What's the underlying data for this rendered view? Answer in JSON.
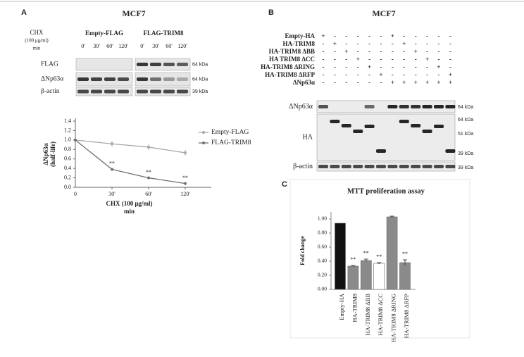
{
  "panel_a": {
    "letter": "A",
    "title": "MCF7",
    "treatment": [
      "CHX",
      "(100 μg/ml)",
      "min"
    ],
    "groups": [
      "Empty-FLAG",
      "FLAG-TRIM8"
    ],
    "lanes": [
      "0'",
      "30'",
      "60'",
      "120'",
      "0'",
      "30'",
      "60'",
      "120'"
    ],
    "rows": [
      "FLAG",
      "ΔNp63α",
      "β-actin"
    ],
    "markers": [
      "64 kDa",
      "64 kDa",
      "39 kDa"
    ]
  },
  "panel_b": {
    "letter": "B",
    "title": "MCF7",
    "rows": [
      {
        "label": "Empty-HA",
        "signs": [
          "+",
          "-",
          "-",
          "-",
          "-",
          "-",
          "+",
          "-",
          "-",
          "-",
          "-",
          "-"
        ]
      },
      {
        "label": "HA-TRIM8",
        "signs": [
          "-",
          "+",
          "-",
          "-",
          "-",
          "-",
          "-",
          "+",
          "-",
          "-",
          "-",
          "-"
        ]
      },
      {
        "label": "HA-TRIM8 ΔBB",
        "signs": [
          "-",
          "-",
          "+",
          "-",
          "-",
          "-",
          "-",
          "-",
          "+",
          "-",
          "-",
          "-"
        ]
      },
      {
        "label": "HA TRIM8 ΔCC",
        "signs": [
          "-",
          "-",
          "-",
          "+",
          "-",
          "-",
          "-",
          "-",
          "-",
          "+",
          "-",
          "-"
        ]
      },
      {
        "label": "HA-TRIM8 ΔRING",
        "signs": [
          "-",
          "-",
          "-",
          "-",
          "+",
          "-",
          "-",
          "-",
          "-",
          "-",
          "+",
          "-"
        ]
      },
      {
        "label": "HA-TRIM8 ΔRFP",
        "signs": [
          "-",
          "-",
          "-",
          "-",
          "-",
          "+",
          "-",
          "-",
          "-",
          "-",
          "-",
          "+"
        ]
      },
      {
        "label": "ΔNp63α",
        "signs": [
          "-",
          "-",
          "-",
          "-",
          "-",
          "-",
          "+",
          "+",
          "+",
          "+",
          "+",
          "+"
        ]
      }
    ],
    "blots": [
      "ΔNp63α",
      "HA",
      "β-actin"
    ],
    "markers": [
      "64 kDa",
      "64 kDa",
      "51 kDa",
      "39 kDa",
      "39 kDa"
    ]
  },
  "panel_c": {
    "letter": "C"
  },
  "chart_data": [
    {
      "type": "line",
      "categories": [
        "0",
        "30'",
        "60'",
        "120'"
      ],
      "y_label": [
        "ΔNp63α",
        "(half-life)"
      ],
      "x_label": [
        "CHX (100 μg/ml)",
        "min"
      ],
      "ylim": [
        0,
        1.4
      ],
      "yticks": [
        {
          "value": 0,
          "label": "0.0"
        },
        0.2,
        0.4,
        0.6,
        0.8,
        {
          "value": 1,
          "label": "1.0"
        },
        1.2,
        1.4
      ],
      "series": [
        {
          "name": "Empty-FLAG",
          "color": "#a8a8a8",
          "values": [
            1.0,
            0.92,
            0.85,
            0.73
          ],
          "errors": [
            0,
            0.06,
            0.06,
            0.06
          ],
          "significance": [
            null,
            null,
            null,
            null
          ]
        },
        {
          "name": "FLAG-TRIM8",
          "color": "#707070",
          "values": [
            1.0,
            0.38,
            0.2,
            0.08
          ],
          "errors": [
            0,
            0.03,
            0.02,
            0.02
          ],
          "significance": [
            null,
            "**",
            "**",
            "**"
          ]
        }
      ]
    },
    {
      "type": "bar",
      "title": "MTT  proliferation assay",
      "y_label": "Fold change",
      "categories": [
        "Empty-HA",
        "HA-TRIM8",
        "HA-TRIM8 ΔBB",
        "HA-TRIM8 ΔCC",
        "HA-TRIM8 ΔRING",
        "HA-TRIM8 ΔRFP"
      ],
      "values": [
        0.94,
        0.33,
        0.41,
        0.37,
        1.03,
        0.38
      ],
      "errors": [
        0,
        0.01,
        0.02,
        0.01,
        0.01,
        0.04
      ],
      "colors": [
        "#111111",
        "#8a8a8a",
        "#8a8a8a",
        "#ffffff",
        "#8a8a8a",
        "#8a8a8a"
      ],
      "significance": [
        null,
        "**",
        "**",
        "**",
        null,
        "**"
      ],
      "ylim": [
        0,
        1.1
      ],
      "yticks": [
        {
          "value": 0,
          "label": "0.00"
        },
        {
          "value": 0.2,
          "label": "0.20"
        },
        {
          "value": 0.4,
          "label": "0.40"
        },
        {
          "value": 0.6,
          "label": "0.60"
        },
        {
          "value": 0.8,
          "label": "0.80"
        },
        {
          "value": 1,
          "label": "1.00"
        }
      ]
    }
  ]
}
